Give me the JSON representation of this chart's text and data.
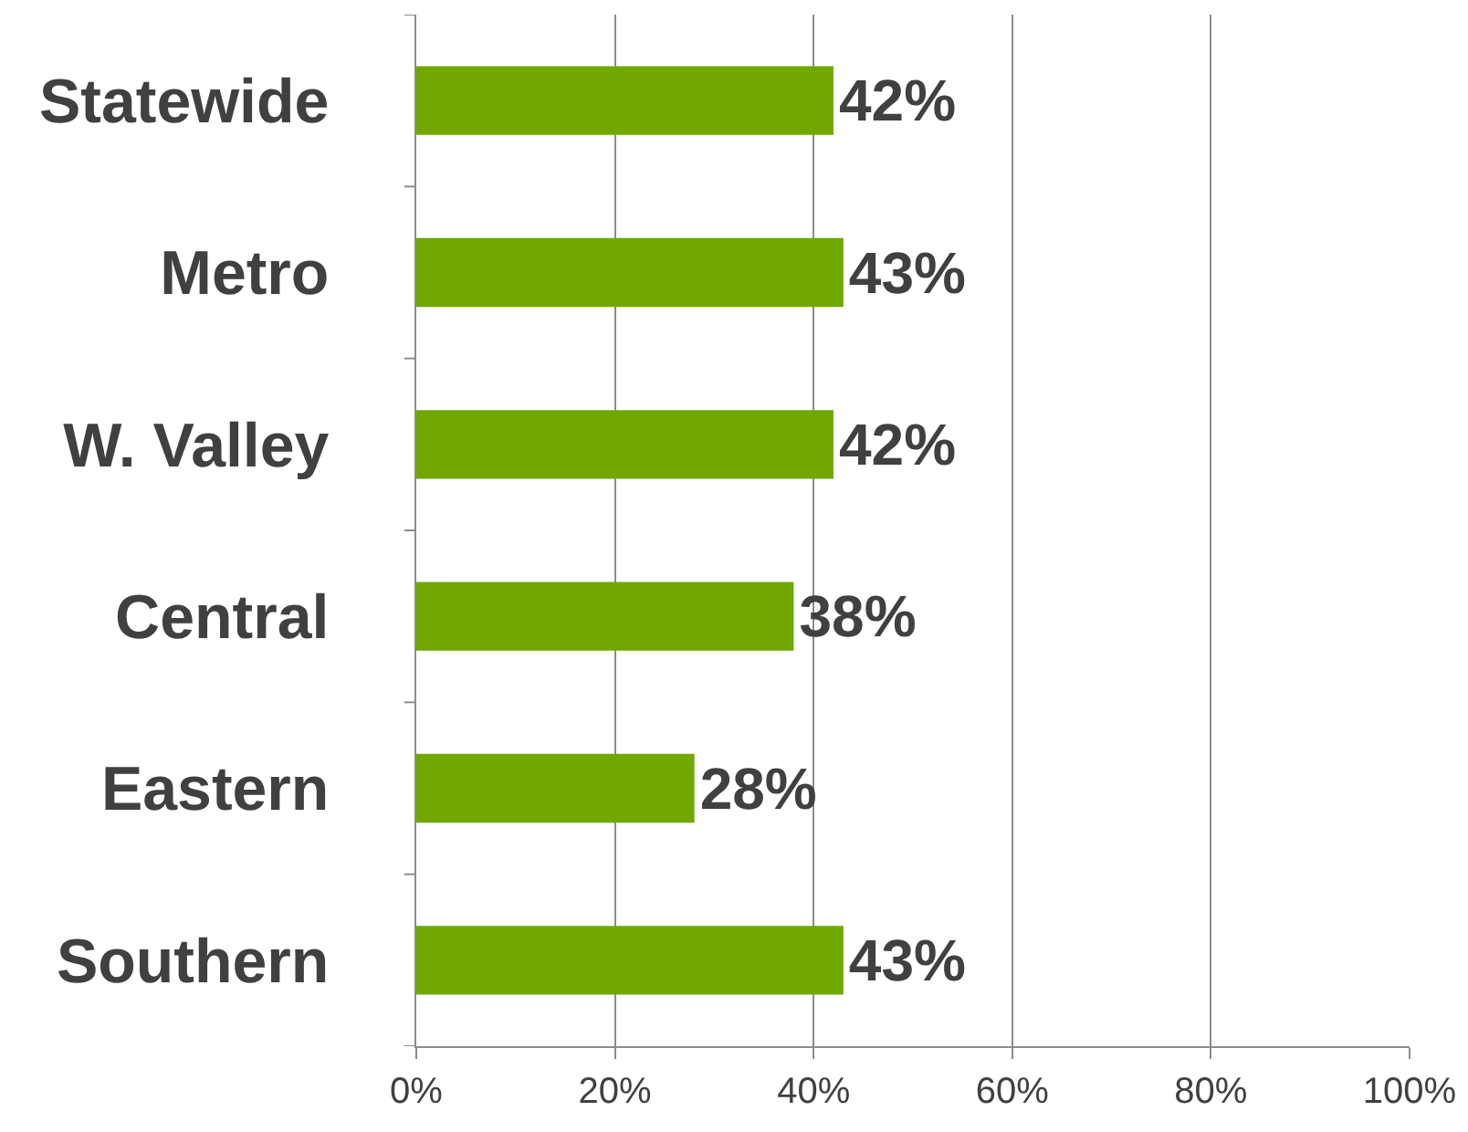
{
  "chart_data": {
    "type": "bar",
    "orientation": "horizontal",
    "categories": [
      "Statewide",
      "Metro",
      "W. Valley",
      "Central",
      "Eastern",
      "Southern"
    ],
    "values": [
      42,
      43,
      42,
      38,
      28,
      43
    ],
    "value_labels": [
      "42%",
      "43%",
      "42%",
      "38%",
      "28%",
      "43%"
    ],
    "color": "#70a800",
    "xlim": [
      0,
      100
    ],
    "xticks": [
      {
        "value": 0,
        "label": "0%"
      },
      {
        "value": 20,
        "label": "20%"
      },
      {
        "value": 40,
        "label": "40%"
      },
      {
        "value": 60,
        "label": "60%"
      },
      {
        "value": 80,
        "label": "80%"
      },
      {
        "value": 100,
        "label": "100%"
      }
    ],
    "grid": "x",
    "legend": false
  }
}
